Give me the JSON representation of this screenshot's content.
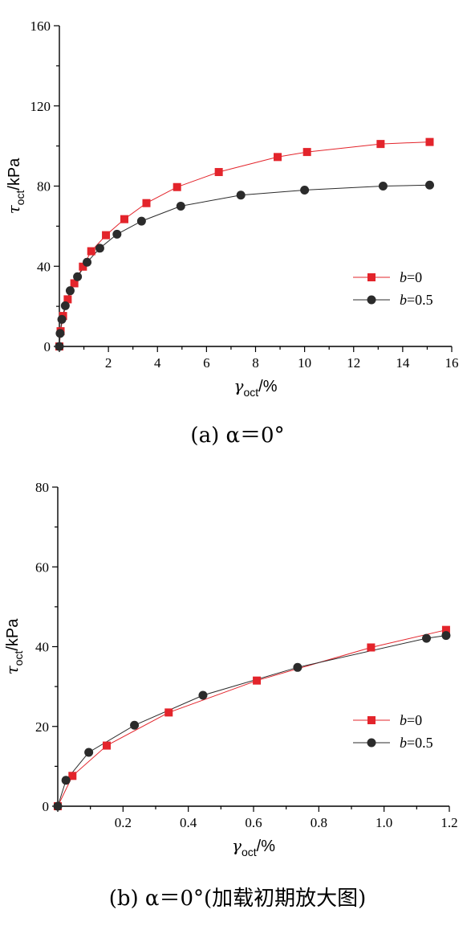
{
  "chart_data": [
    {
      "type": "line",
      "caption": "(a) α＝0°",
      "xlabel": "γoct/%",
      "ylabel": "τoct/kPa",
      "xlim": [
        0,
        16
      ],
      "ylim": [
        0,
        160
      ],
      "xticks": [
        2,
        4,
        6,
        8,
        10,
        12,
        14,
        16
      ],
      "yticks": [
        0,
        40,
        80,
        120,
        160
      ],
      "legend_position": "right-middle",
      "series": [
        {
          "name": "b=0",
          "color": "#e3242b",
          "marker": "square",
          "x": [
            0,
            0.05,
            0.15,
            0.34,
            0.61,
            0.96,
            1.3,
            1.9,
            2.65,
            3.55,
            4.8,
            6.5,
            8.9,
            10.1,
            13.1,
            15.1
          ],
          "y": [
            0,
            7.6,
            15.2,
            23.5,
            31.5,
            39.8,
            47.5,
            55.5,
            63.5,
            71.5,
            79.5,
            87,
            94.5,
            97,
            101,
            102
          ]
        },
        {
          "name": "b=0.5",
          "color": "#2b2b2b",
          "marker": "circle",
          "x": [
            0,
            0.03,
            0.1,
            0.24,
            0.44,
            0.74,
            1.13,
            1.65,
            2.35,
            3.35,
            4.95,
            7.4,
            10.0,
            13.2,
            15.1
          ],
          "y": [
            0,
            6.5,
            13.5,
            20.3,
            27.8,
            34.8,
            42,
            49,
            56,
            62.5,
            70,
            75.5,
            78,
            80,
            80.5
          ]
        }
      ]
    },
    {
      "type": "line",
      "caption": "(b) α＝0°(加载初期放大图)",
      "xlabel": "γoct/%",
      "ylabel": "τoct/kPa",
      "xlim": [
        0,
        1.2
      ],
      "ylim": [
        0,
        80
      ],
      "xticks": [
        0.2,
        0.4,
        0.6,
        0.8,
        1.0,
        1.2
      ],
      "yticks": [
        0,
        20,
        40,
        60,
        80
      ],
      "legend_position": "right-lower",
      "series": [
        {
          "name": "b=0",
          "color": "#e3242b",
          "marker": "square",
          "x": [
            0,
            0.045,
            0.15,
            0.34,
            0.61,
            0.96,
            1.19
          ],
          "y": [
            0,
            7.6,
            15.2,
            23.5,
            31.5,
            39.8,
            44.2
          ]
        },
        {
          "name": "b=0.5",
          "color": "#2b2b2b",
          "marker": "circle",
          "x": [
            0,
            0.025,
            0.095,
            0.235,
            0.445,
            0.735,
            1.13,
            1.19
          ],
          "y": [
            0,
            6.5,
            13.5,
            20.3,
            27.8,
            34.8,
            42.1,
            42.8
          ]
        }
      ]
    }
  ]
}
